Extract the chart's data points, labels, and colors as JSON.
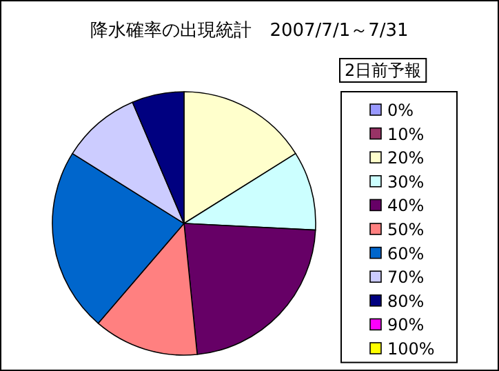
{
  "chart_data": {
    "type": "pie",
    "title": "降水確率の出現統計　2007/7/1～7/31",
    "legend_title": "2日前予報",
    "legend": "right",
    "categories": [
      "0%",
      "10%",
      "20%",
      "30%",
      "40%",
      "50%",
      "60%",
      "70%",
      "80%",
      "90%",
      "100%"
    ],
    "values": [
      0,
      0,
      16.1,
      9.7,
      22.6,
      12.9,
      22.6,
      9.7,
      6.4,
      0,
      0
    ],
    "colors": [
      "#9999ff",
      "#993366",
      "#ffffcc",
      "#ccffff",
      "#660066",
      "#ff8080",
      "#0066cc",
      "#ccccff",
      "#000080",
      "#ff00ff",
      "#ffff00"
    ]
  }
}
